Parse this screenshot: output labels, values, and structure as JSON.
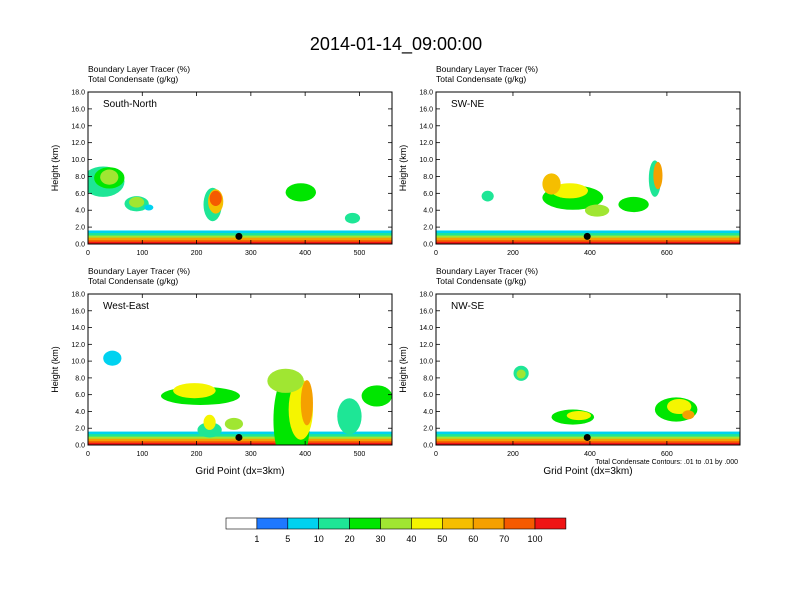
{
  "figure": {
    "title": "2014-01-14_09:00:00",
    "footnote": "Total Condensate Contours: .01 to .01 by .000",
    "colors": [
      "#ffffff",
      "#1e78ff",
      "#00d2f0",
      "#1ee696",
      "#00e600",
      "#a0e632",
      "#f5f500",
      "#f5be00",
      "#f5a000",
      "#f55a00",
      "#f01414"
    ]
  },
  "chart_data": [
    {
      "type": "heatmap",
      "panel_label": "South-North",
      "header": [
        "Boundary Layer Tracer   (%)",
        "Total Condensate   (g/kg)"
      ],
      "ylabel": "Height (km)",
      "xlabel": "",
      "ylim": [
        0,
        18
      ],
      "xlim": [
        0,
        560
      ],
      "yticks": [
        "0.0",
        "2.0",
        "4.0",
        "6.0",
        "8.0",
        "10.0",
        "12.0",
        "14.0",
        "16.0",
        "18.0"
      ],
      "xticks": [
        "0",
        "100",
        "200",
        "300",
        "400",
        "500"
      ],
      "xtick_values": [
        0,
        100,
        200,
        300,
        400,
        500
      ],
      "marker_x": 278
    },
    {
      "type": "heatmap",
      "panel_label": "SW-NE",
      "header": [
        "Boundary Layer Tracer   (%)",
        "Total Condensate   (g/kg)"
      ],
      "ylabel": "Height (km)",
      "xlabel": "",
      "ylim": [
        0,
        18
      ],
      "xlim": [
        0,
        790
      ],
      "yticks": [
        "0.0",
        "2.0",
        "4.0",
        "6.0",
        "8.0",
        "10.0",
        "12.0",
        "14.0",
        "16.0",
        "18.0"
      ],
      "xticks": [
        "0",
        "200",
        "400",
        "600"
      ],
      "xtick_values": [
        0,
        200,
        400,
        600
      ],
      "marker_x": 393
    },
    {
      "type": "heatmap",
      "panel_label": "West-East",
      "header": [
        "Boundary Layer Tracer   (%)",
        "Total Condensate   (g/kg)"
      ],
      "ylabel": "Height (km)",
      "xlabel": "Grid Point (dx=3km)",
      "ylim": [
        0,
        18
      ],
      "xlim": [
        0,
        560
      ],
      "yticks": [
        "0.0",
        "2.0",
        "4.0",
        "6.0",
        "8.0",
        "10.0",
        "12.0",
        "14.0",
        "16.0",
        "18.0"
      ],
      "xticks": [
        "0",
        "100",
        "200",
        "300",
        "400",
        "500"
      ],
      "xtick_values": [
        0,
        100,
        200,
        300,
        400,
        500
      ],
      "marker_x": 278
    },
    {
      "type": "heatmap",
      "panel_label": "NW-SE",
      "header": [
        "Boundary Layer Tracer   (%)",
        "Total Condensate   (g/kg)"
      ],
      "ylabel": "Height (km)",
      "xlabel": "Grid Point (dx=3km)",
      "ylim": [
        0,
        18
      ],
      "xlim": [
        0,
        790
      ],
      "yticks": [
        "0.0",
        "2.0",
        "4.0",
        "6.0",
        "8.0",
        "10.0",
        "12.0",
        "14.0",
        "16.0",
        "18.0"
      ],
      "xticks": [
        "0",
        "200",
        "400",
        "600"
      ],
      "xtick_values": [
        0,
        200,
        400,
        600
      ],
      "marker_x": 393
    }
  ],
  "colorbar": {
    "labels": [
      "1",
      "5",
      "10",
      "20",
      "30",
      "40",
      "50",
      "60",
      "70",
      "100"
    ]
  }
}
